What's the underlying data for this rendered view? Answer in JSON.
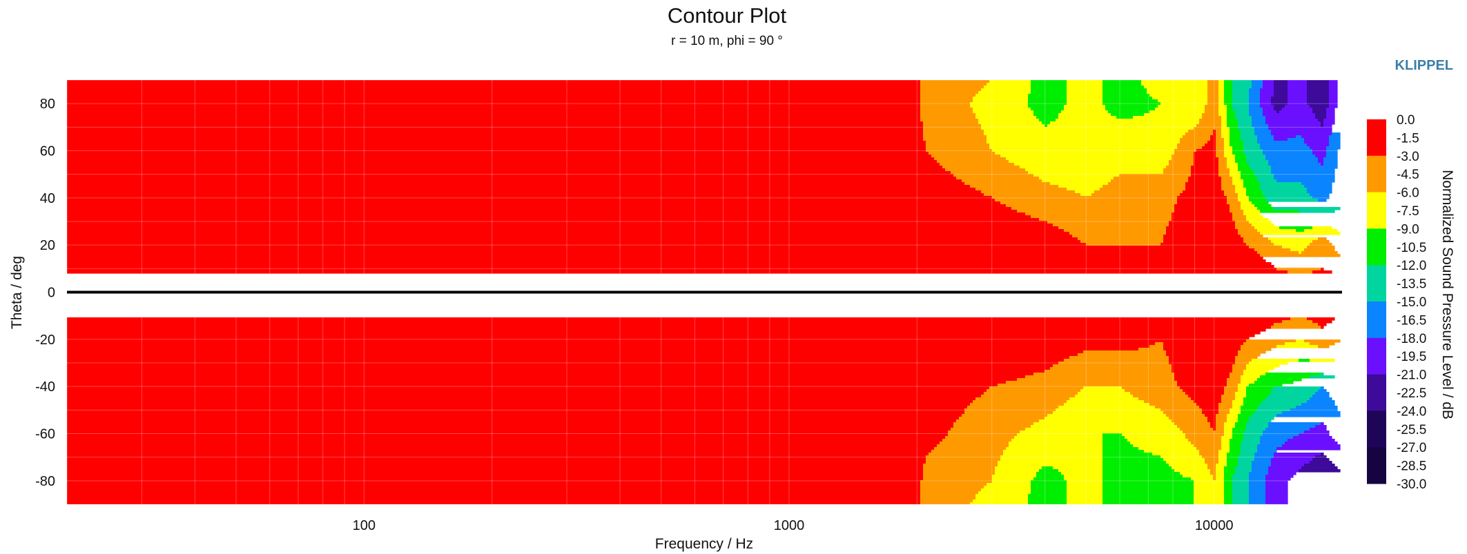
{
  "chart_data": {
    "type": "heatmap",
    "title": "Contour Plot",
    "subtitle": "r = 10 m, phi = 90 °",
    "xlabel": "Frequency / Hz",
    "ylabel": "Theta / deg",
    "colorbar_label": "Normalized Sound Pressure Level / dB",
    "brand": "KLIPPEL",
    "x_scale": "log",
    "xlim": [
      20,
      20000
    ],
    "ylim": [
      -90,
      90
    ],
    "x_ticks": [
      100,
      1000,
      10000
    ],
    "x_tick_labels": [
      "100",
      "1000",
      "10000"
    ],
    "y_ticks": [
      80,
      60,
      40,
      20,
      0,
      -20,
      -40,
      -60,
      -80
    ],
    "y_tick_labels": [
      "80",
      "60",
      "40",
      "20",
      "0",
      "-20",
      "-40",
      "-60",
      "-80"
    ],
    "grid": true,
    "reference_line_theta": 0,
    "levels": [
      "0.0",
      "-1.5",
      "-3.0",
      "-4.5",
      "-6.0",
      "-7.5",
      "-9.0",
      "-10.5",
      "-12.0",
      "-13.5",
      "-15.0",
      "-16.5",
      "-18.0",
      "-19.5",
      "-21.0",
      "-22.5",
      "-24.0",
      "-25.5",
      "-27.0",
      "-28.5",
      "-30.0"
    ],
    "level_colors": [
      "#ff0000",
      "#ff9900",
      "#ffff00",
      "#00ee00",
      "#00d5a0",
      "#0a85ff",
      "#6a10ff",
      "#3d0a9a",
      "#1f0558",
      "#160440"
    ],
    "frequencies": [
      20,
      1000,
      1500,
      1900,
      2100,
      3000,
      4000,
      5000,
      6000,
      7500,
      9000,
      10000,
      11000,
      12000,
      14000,
      16000,
      18000,
      20000
    ],
    "thetas": [
      90,
      80,
      60,
      40,
      20,
      10,
      0,
      -10,
      -20,
      -40,
      -60,
      -80,
      -90
    ],
    "values": [
      [
        0,
        0,
        0,
        -1,
        -4,
        -6,
        -10,
        -8,
        -10,
        -8,
        -9,
        -4,
        -12,
        -14,
        -22,
        -20,
        -23,
        -16
      ],
      [
        0,
        0,
        0,
        -1,
        -4,
        -7,
        -10,
        -8,
        -10,
        -9,
        -9,
        -4,
        -12,
        -15,
        -22,
        -20,
        -23,
        -16
      ],
      [
        0,
        0,
        0,
        -1,
        -3,
        -6,
        -8,
        -8,
        -7,
        -8,
        -3,
        -2,
        -9,
        -13,
        -17,
        -17,
        -19,
        -14
      ],
      [
        0,
        0,
        0,
        0,
        -1,
        -3,
        -5,
        -6,
        -5,
        -4,
        -2,
        -1,
        -4,
        -9,
        -14,
        -14,
        -16,
        -13
      ],
      [
        0,
        0,
        0,
        0,
        0,
        0,
        -1,
        -3,
        -3,
        -3,
        -1,
        0,
        -1,
        -3,
        -6,
        -7,
        -4,
        -8
      ],
      [
        0,
        0,
        0,
        0,
        0,
        0,
        0,
        0,
        -1,
        0,
        0,
        0,
        0,
        0,
        -3,
        -4,
        -3,
        -4
      ],
      [
        0,
        0,
        0,
        0,
        0,
        0,
        0,
        0,
        0,
        0,
        0,
        0,
        0,
        0,
        0,
        0,
        0,
        0
      ],
      [
        0,
        0,
        0,
        0,
        0,
        0,
        0,
        0,
        0,
        0,
        0,
        0,
        0,
        0,
        -2,
        -3,
        -2,
        -3
      ],
      [
        0,
        0,
        0,
        0,
        0,
        0,
        -1,
        -2,
        -2,
        -3,
        -1,
        0,
        -1,
        -3,
        -5,
        -6,
        -4,
        -6
      ],
      [
        0,
        0,
        0,
        0,
        -1,
        -3,
        -4,
        -6,
        -6,
        -4,
        -2,
        -1,
        -4,
        -9,
        -12,
        -13,
        -15,
        -13
      ],
      [
        0,
        0,
        -1,
        0,
        -2,
        -5,
        -7,
        -9,
        -9,
        -8,
        -5,
        -3,
        -9,
        -13,
        -17,
        -18,
        -19,
        -16
      ],
      [
        0,
        0,
        -3,
        0,
        -4,
        -6,
        -10,
        -8,
        -10,
        -10,
        -9,
        -6,
        -12,
        -15,
        -20,
        -22,
        -24,
        -22
      ],
      [
        0,
        0,
        -3,
        0,
        -4,
        -7,
        -10,
        -8,
        -10,
        -10,
        -9,
        -6,
        -12,
        -15,
        -20,
        -22,
        -24,
        -22
      ]
    ]
  }
}
